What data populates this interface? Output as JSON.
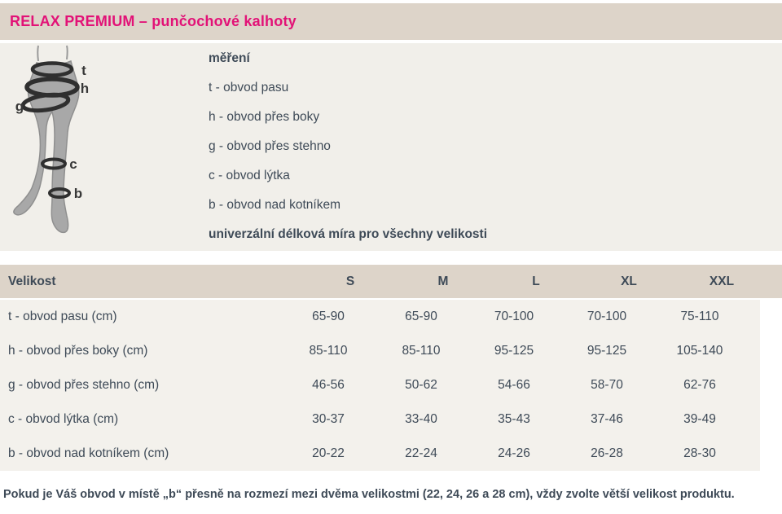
{
  "header": {
    "title": "RELAX PREMIUM – punčochové kalhoty"
  },
  "measurement": {
    "heading": "měření",
    "items": [
      "t - obvod pasu",
      "h - obvod přes boky",
      "g - obvod přes stehno",
      "c - obvod lýtka",
      "b - obvod nad kotníkem"
    ],
    "universal_note": "univerzální délková míra pro všechny velikosti",
    "diagram_labels": [
      "t",
      "h",
      "g",
      "c",
      "b"
    ]
  },
  "size_table": {
    "header": [
      "Velikost",
      "S",
      "M",
      "L",
      "XL",
      "XXL"
    ],
    "rows": [
      {
        "label": "t - obvod pasu (cm)",
        "values": [
          "65-90",
          "65-90",
          "70-100",
          "70-100",
          "75-110"
        ]
      },
      {
        "label": "h - obvod přes boky (cm)",
        "values": [
          "85-110",
          "85-110",
          "95-125",
          "95-125",
          "105-140"
        ]
      },
      {
        "label": "g - obvod přes stehno (cm)",
        "values": [
          "46-56",
          "50-62",
          "54-66",
          "58-70",
          "62-76"
        ]
      },
      {
        "label": "c - obvod lýtka (cm)",
        "values": [
          "30-37",
          "33-40",
          "35-43",
          "37-46",
          "39-49"
        ]
      },
      {
        "label": "b - obvod nad kotníkem (cm)",
        "values": [
          "20-22",
          "22-24",
          "24-26",
          "26-28",
          "28-30"
        ]
      }
    ]
  },
  "footer": {
    "note": "Pokud je Váš obvod v místě „b“ přesně na rozmezí mezi dvěma velikostmi (22, 24, 26 a 28 cm), vždy zvolte větší velikost produktu."
  },
  "colors": {
    "accent_magenta": "#e21277",
    "band_background": "#ddd4c9",
    "section_background": "#f1efea",
    "table_body_background": "#f3f1ec",
    "text": "#3e4a57"
  }
}
